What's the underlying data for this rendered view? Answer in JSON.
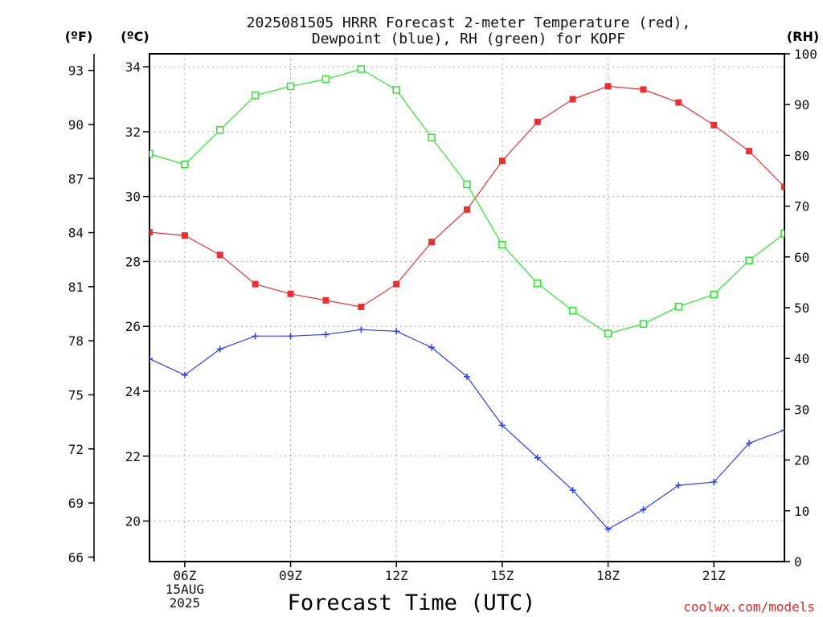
{
  "chart_data": {
    "type": "line",
    "title_lines": [
      "2025081505 HRRR Forecast 2-meter Temperature (red),",
      "Dewpoint (blue), RH (green) for KOPF"
    ],
    "left_axis_unit_f": "(ºF)",
    "left_axis_unit_c": "(ºC)",
    "right_axis_unit": "(RH)",
    "xlabel": "Forecast Time (UTC)",
    "credit": "coolwx.com/models",
    "grid": true,
    "x_hours": [
      5,
      6,
      7,
      8,
      9,
      10,
      11,
      12,
      13,
      14,
      15,
      16,
      17,
      18,
      19,
      20,
      21,
      22,
      23
    ],
    "x_range": [
      5,
      23
    ],
    "x_ticks": [
      {
        "hour": 6,
        "lines": [
          "06Z",
          "15AUG",
          "2025"
        ]
      },
      {
        "hour": 9,
        "lines": [
          "09Z"
        ]
      },
      {
        "hour": 12,
        "lines": [
          "12Z"
        ]
      },
      {
        "hour": 15,
        "lines": [
          "15Z"
        ]
      },
      {
        "hour": 18,
        "lines": [
          "18Z"
        ]
      },
      {
        "hour": 21,
        "lines": [
          "21Z"
        ]
      }
    ],
    "celsius_range": [
      18.75,
      34.4
    ],
    "celsius_ticks": [
      20,
      22,
      24,
      26,
      28,
      30,
      32,
      34
    ],
    "fahrenheit_ticks": [
      66,
      69,
      72,
      75,
      78,
      81,
      84,
      87,
      90,
      93
    ],
    "rh_range": [
      0,
      100
    ],
    "rh_ticks": [
      0,
      10,
      20,
      30,
      40,
      50,
      60,
      70,
      80,
      90,
      100
    ],
    "series": [
      {
        "axis": "celsius",
        "color": "#e63232",
        "marker": "filled-square",
        "values": [
          28.9,
          28.8,
          28.2,
          27.3,
          27.0,
          26.8,
          26.6,
          27.3,
          28.6,
          29.6,
          31.1,
          32.3,
          33.0,
          33.4,
          33.3,
          32.9,
          32.2,
          31.4,
          30.3
        ]
      },
      {
        "axis": "celsius",
        "color": "#2a40e6",
        "marker": "plus",
        "values": [
          25.0,
          24.5,
          25.3,
          25.7,
          25.7,
          25.75,
          25.9,
          25.85,
          25.35,
          24.45,
          22.95,
          21.95,
          20.95,
          19.75,
          20.35,
          21.1,
          21.2,
          22.4,
          22.8
        ]
      },
      {
        "axis": "rh",
        "color": "#28e628",
        "marker": "open-square",
        "values": [
          80.3,
          78.2,
          85.0,
          91.8,
          93.6,
          95.0,
          97.0,
          92.9,
          83.5,
          74.3,
          62.4,
          54.8,
          49.4,
          44.9,
          46.8,
          50.2,
          52.6,
          59.3,
          64.6
        ]
      }
    ]
  }
}
